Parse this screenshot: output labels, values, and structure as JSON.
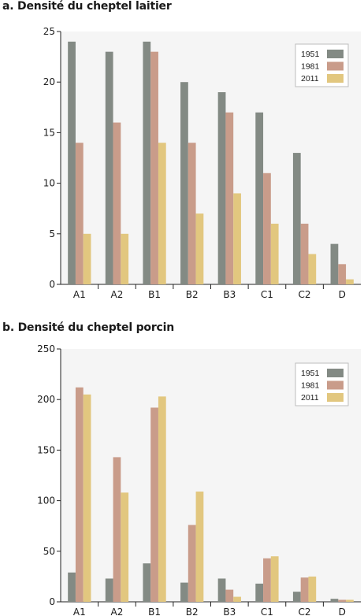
{
  "colors": {
    "1951": "#838a84",
    "1981": "#c99c8a",
    "2011": "#e2c77f",
    "plot_background": "#f5f5f5"
  },
  "chart_data": [
    {
      "type": "bar",
      "title": "a. Densité du cheptel laitier",
      "xlabel": "",
      "ylabel": "",
      "categories": [
        "A1",
        "A2",
        "B1",
        "B2",
        "B3",
        "C1",
        "C2",
        "D"
      ],
      "ylim": [
        0,
        25
      ],
      "yticks": [
        0,
        5,
        10,
        15,
        20,
        25
      ],
      "legend_position": "top-right",
      "grid": false,
      "series": [
        {
          "name": "1951",
          "values": [
            24,
            23,
            24,
            20,
            19,
            17,
            13,
            4
          ]
        },
        {
          "name": "1981",
          "values": [
            14,
            16,
            23,
            14,
            17,
            11,
            6,
            2
          ]
        },
        {
          "name": "2011",
          "values": [
            5,
            5,
            14,
            7,
            9,
            6,
            3,
            0.5
          ]
        }
      ]
    },
    {
      "type": "bar",
      "title": "b. Densité du cheptel porcin",
      "xlabel": "",
      "ylabel": "",
      "categories": [
        "A1",
        "A2",
        "B1",
        "B2",
        "B3",
        "C1",
        "C2",
        "D"
      ],
      "ylim": [
        0,
        250
      ],
      "yticks": [
        0,
        50,
        100,
        150,
        200,
        250
      ],
      "legend_position": "top-right",
      "grid": false,
      "series": [
        {
          "name": "1951",
          "values": [
            29,
            23,
            38,
            19,
            23,
            18,
            10,
            3
          ]
        },
        {
          "name": "1981",
          "values": [
            212,
            143,
            192,
            76,
            12,
            43,
            24,
            2
          ]
        },
        {
          "name": "2011",
          "values": [
            205,
            108,
            203,
            109,
            5,
            45,
            25,
            2
          ]
        }
      ]
    }
  ]
}
